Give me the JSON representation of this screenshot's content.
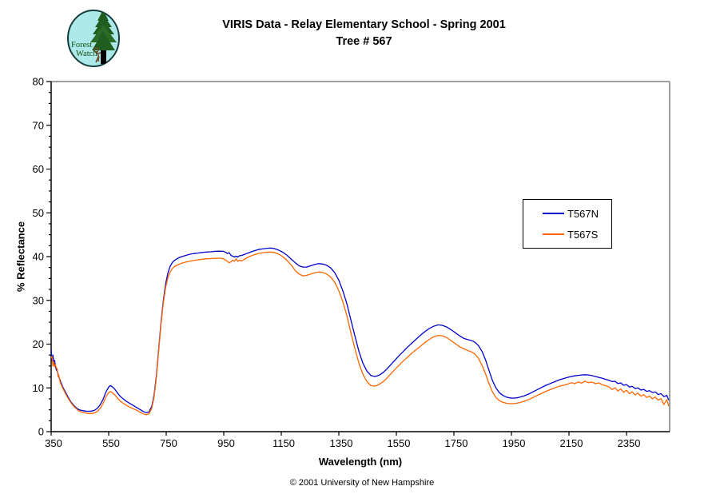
{
  "logo": {
    "line1": "Forest",
    "line2": "Watch"
  },
  "footer": {
    "copyright": "© 2001 University of New Hampshire"
  },
  "chart_data": {
    "type": "line",
    "title": "VIRIS Data - Relay Elementary School - Spring 2001",
    "subtitle": "Tree # 567",
    "xlabel": "Wavelength (nm)",
    "ylabel": "% Reflectance",
    "xlim": [
      350,
      2500
    ],
    "ylim": [
      0,
      80
    ],
    "x_ticks": [
      350,
      550,
      750,
      950,
      1150,
      1350,
      1550,
      1750,
      1950,
      2150,
      2350
    ],
    "y_ticks": [
      0,
      10,
      20,
      30,
      40,
      50,
      60,
      70,
      80
    ],
    "y_minor_step": 2.5,
    "grid": false,
    "legend_position": "right-center",
    "axis_color": "#000000",
    "border_color": "#808080",
    "x": [
      350,
      353,
      356,
      359,
      362,
      365,
      368,
      371,
      374,
      377,
      380,
      383,
      386,
      390,
      395,
      400,
      405,
      410,
      415,
      420,
      425,
      430,
      435,
      440,
      445,
      450,
      460,
      470,
      480,
      490,
      500,
      510,
      520,
      530,
      540,
      550,
      555,
      560,
      570,
      580,
      590,
      600,
      610,
      620,
      630,
      640,
      650,
      660,
      670,
      680,
      690,
      700,
      708,
      716,
      724,
      732,
      740,
      748,
      756,
      764,
      772,
      780,
      790,
      800,
      815,
      830,
      845,
      860,
      875,
      890,
      905,
      920,
      935,
      948,
      956,
      963,
      969,
      975,
      981,
      987,
      993,
      999,
      1005,
      1012,
      1020,
      1030,
      1042,
      1055,
      1070,
      1085,
      1100,
      1112,
      1125,
      1140,
      1155,
      1170,
      1185,
      1200,
      1212,
      1225,
      1238,
      1252,
      1266,
      1280,
      1294,
      1308,
      1322,
      1336,
      1350,
      1364,
      1378,
      1392,
      1406,
      1420,
      1434,
      1448,
      1462,
      1476,
      1490,
      1504,
      1518,
      1532,
      1546,
      1560,
      1575,
      1590,
      1605,
      1620,
      1635,
      1650,
      1665,
      1680,
      1695,
      1710,
      1725,
      1740,
      1755,
      1770,
      1785,
      1800,
      1812,
      1824,
      1836,
      1848,
      1860,
      1872,
      1884,
      1896,
      1908,
      1920,
      1932,
      1944,
      1956,
      1968,
      1980,
      1995,
      2010,
      2025,
      2040,
      2055,
      2070,
      2085,
      2100,
      2115,
      2130,
      2145,
      2158,
      2170,
      2182,
      2194,
      2206,
      2218,
      2230,
      2242,
      2254,
      2266,
      2278,
      2290,
      2300,
      2310,
      2320,
      2330,
      2340,
      2350,
      2360,
      2370,
      2380,
      2390,
      2400,
      2410,
      2420,
      2430,
      2440,
      2450,
      2460,
      2470,
      2480,
      2490,
      2497
    ],
    "series": [
      {
        "name": "T567N",
        "color": "#0000CC",
        "values": [
          18.8,
          16.2,
          17.5,
          15.8,
          16.3,
          14.9,
          14.2,
          13.8,
          13.2,
          12.4,
          12.0,
          11.4,
          10.9,
          10.3,
          9.6,
          9.0,
          8.4,
          7.8,
          7.2,
          6.7,
          6.3,
          5.9,
          5.6,
          5.3,
          5.1,
          4.95,
          4.8,
          4.7,
          4.65,
          4.7,
          4.85,
          5.3,
          6.1,
          7.3,
          9.0,
          10.2,
          10.5,
          10.4,
          9.8,
          8.9,
          8.1,
          7.5,
          7.0,
          6.6,
          6.2,
          5.8,
          5.4,
          5.0,
          4.6,
          4.35,
          4.5,
          5.8,
          8.5,
          13.0,
          19.0,
          25.0,
          30.0,
          33.8,
          36.3,
          37.8,
          38.7,
          39.2,
          39.6,
          39.9,
          40.2,
          40.5,
          40.7,
          40.8,
          40.95,
          41.05,
          41.1,
          41.2,
          41.25,
          41.2,
          41.0,
          40.7,
          40.9,
          40.3,
          40.1,
          39.9,
          40.1,
          39.9,
          40.2,
          40.25,
          40.45,
          40.7,
          41.0,
          41.3,
          41.6,
          41.75,
          41.9,
          41.95,
          41.85,
          41.5,
          41.0,
          40.3,
          39.4,
          38.5,
          37.9,
          37.6,
          37.6,
          37.9,
          38.2,
          38.4,
          38.3,
          38.0,
          37.4,
          36.3,
          34.6,
          32.2,
          29.2,
          25.5,
          21.8,
          18.3,
          15.6,
          13.8,
          12.8,
          12.6,
          12.9,
          13.5,
          14.4,
          15.4,
          16.4,
          17.4,
          18.4,
          19.4,
          20.3,
          21.2,
          22.1,
          22.9,
          23.6,
          24.1,
          24.4,
          24.3,
          23.9,
          23.3,
          22.6,
          21.9,
          21.3,
          21.0,
          20.8,
          20.4,
          19.6,
          18.3,
          16.4,
          14.0,
          11.7,
          10.0,
          8.9,
          8.3,
          7.9,
          7.7,
          7.65,
          7.7,
          7.9,
          8.2,
          8.6,
          9.1,
          9.6,
          10.1,
          10.6,
          11.0,
          11.4,
          11.8,
          12.1,
          12.4,
          12.6,
          12.75,
          12.85,
          12.95,
          13.0,
          12.95,
          12.8,
          12.6,
          12.4,
          12.2,
          11.95,
          11.7,
          11.45,
          11.5,
          11.0,
          11.15,
          10.6,
          10.75,
          10.2,
          10.35,
          9.85,
          10.0,
          9.5,
          9.65,
          9.2,
          9.35,
          8.95,
          9.1,
          8.5,
          8.7,
          8.0,
          8.3,
          7.2
        ]
      },
      {
        "name": "T567S",
        "color": "#FF6600",
        "values": [
          16.8,
          17.2,
          15.0,
          16.0,
          14.8,
          15.3,
          14.6,
          14.3,
          12.6,
          12.9,
          11.6,
          11.0,
          10.6,
          10.0,
          9.3,
          8.7,
          8.1,
          7.5,
          7.0,
          6.5,
          6.1,
          5.7,
          5.4,
          5.1,
          4.8,
          4.6,
          4.4,
          4.25,
          4.15,
          4.15,
          4.25,
          4.6,
          5.3,
          6.4,
          7.9,
          8.9,
          9.15,
          9.05,
          8.5,
          7.7,
          7.0,
          6.5,
          6.1,
          5.7,
          5.4,
          5.1,
          4.8,
          4.4,
          4.1,
          3.85,
          4.1,
          5.4,
          8.0,
          12.5,
          18.5,
          24.5,
          29.4,
          33.0,
          35.2,
          36.5,
          37.3,
          37.8,
          38.1,
          38.4,
          38.7,
          38.9,
          39.1,
          39.25,
          39.4,
          39.5,
          39.55,
          39.6,
          39.65,
          39.5,
          39.2,
          38.9,
          38.6,
          38.8,
          39.2,
          38.9,
          39.5,
          38.9,
          39.2,
          39.0,
          39.3,
          39.7,
          40.1,
          40.4,
          40.7,
          40.9,
          41.0,
          41.05,
          40.95,
          40.6,
          40.0,
          39.1,
          38.0,
          36.7,
          36.0,
          35.6,
          35.7,
          36.0,
          36.3,
          36.5,
          36.4,
          36.0,
          35.3,
          34.1,
          32.2,
          29.7,
          26.5,
          22.6,
          18.9,
          15.6,
          13.1,
          11.4,
          10.5,
          10.4,
          10.8,
          11.4,
          12.3,
          13.3,
          14.3,
          15.2,
          16.2,
          17.1,
          18.0,
          18.8,
          19.6,
          20.4,
          21.1,
          21.7,
          22.0,
          21.9,
          21.5,
          20.8,
          20.1,
          19.4,
          18.9,
          18.5,
          18.2,
          17.7,
          16.7,
          15.1,
          13.2,
          11.0,
          9.1,
          7.8,
          7.1,
          6.7,
          6.5,
          6.4,
          6.4,
          6.5,
          6.65,
          6.95,
          7.35,
          7.8,
          8.3,
          8.75,
          9.2,
          9.6,
          10.0,
          10.35,
          10.6,
          10.85,
          11.2,
          10.95,
          11.35,
          11.1,
          11.5,
          11.2,
          11.35,
          10.95,
          11.15,
          10.7,
          10.5,
          10.15,
          9.6,
          10.05,
          9.3,
          9.75,
          9.0,
          9.45,
          8.7,
          9.1,
          8.4,
          8.8,
          8.1,
          8.45,
          7.8,
          8.15,
          7.5,
          7.9,
          7.2,
          7.55,
          6.2,
          7.3,
          5.8
        ]
      }
    ]
  }
}
